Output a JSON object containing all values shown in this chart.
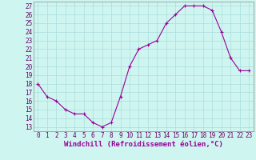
{
  "x": [
    0,
    1,
    2,
    3,
    4,
    5,
    6,
    7,
    8,
    9,
    10,
    11,
    12,
    13,
    14,
    15,
    16,
    17,
    18,
    19,
    20,
    21,
    22,
    23
  ],
  "y": [
    18,
    16.5,
    16,
    15,
    14.5,
    14.5,
    13.5,
    13,
    13.5,
    16.5,
    20,
    22,
    22.5,
    23,
    25,
    26,
    27,
    27,
    27,
    26.5,
    24,
    21,
    19.5,
    19.5
  ],
  "line_color": "#990099",
  "marker": "+",
  "bg_color": "#cef5f0",
  "grid_color": "#aadddd",
  "xlabel": "Windchill (Refroidissement éolien,°C)",
  "xlabel_fontsize": 6.5,
  "tick_fontsize": 5.5,
  "ylim": [
    12.5,
    27.5
  ],
  "xlim": [
    -0.5,
    23.5
  ],
  "yticks": [
    13,
    14,
    15,
    16,
    17,
    18,
    19,
    20,
    21,
    22,
    23,
    24,
    25,
    26,
    27
  ],
  "xticks": [
    0,
    1,
    2,
    3,
    4,
    5,
    6,
    7,
    8,
    9,
    10,
    11,
    12,
    13,
    14,
    15,
    16,
    17,
    18,
    19,
    20,
    21,
    22,
    23
  ]
}
